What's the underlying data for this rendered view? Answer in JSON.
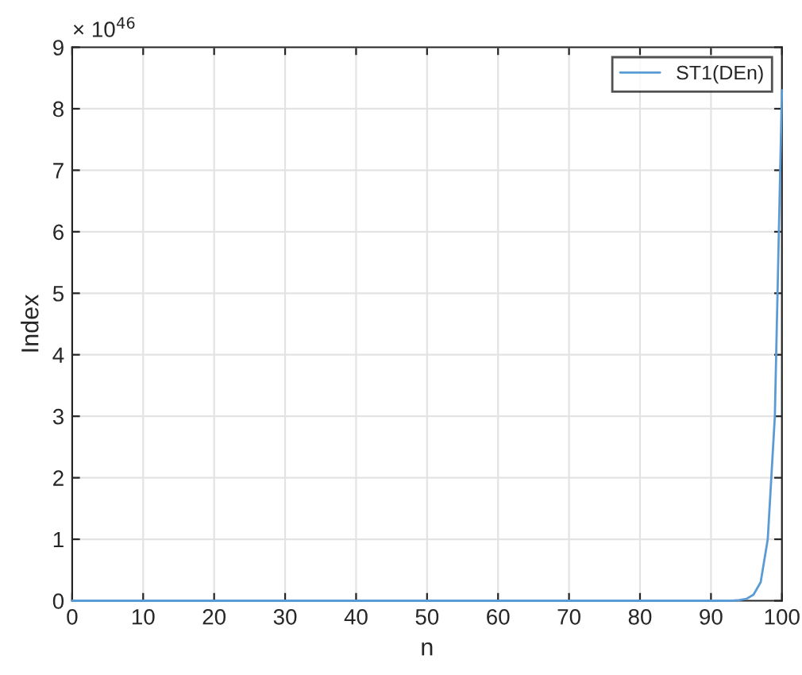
{
  "chart_data": {
    "type": "line",
    "xlabel": "n",
    "ylabel": "Index",
    "annotations": [
      "× 10$^{46}$"
    ],
    "series": [
      {
        "name": "ST1(DEn)",
        "color": "#5b9bd5",
        "x": [
          0,
          10,
          20,
          30,
          40,
          50,
          60,
          70,
          80,
          90,
          93,
          94,
          95,
          96,
          97,
          98,
          99,
          100
        ],
        "values": [
          0,
          0,
          0,
          0,
          0,
          0,
          0,
          0,
          0,
          0,
          0,
          0.01,
          0.03,
          0.1,
          0.3,
          1.0,
          3.0,
          8.3
        ]
      }
    ],
    "xlim": [
      0,
      100
    ],
    "xticks": [
      0,
      10,
      20,
      30,
      40,
      50,
      60,
      70,
      80,
      90,
      100
    ],
    "ylim": [
      0,
      9
    ],
    "yticks": [
      0,
      1,
      2,
      3,
      4,
      5,
      6,
      7,
      8,
      9
    ],
    "grid": true,
    "legend": "top right",
    "marker": "none",
    "line_style": "solid"
  }
}
